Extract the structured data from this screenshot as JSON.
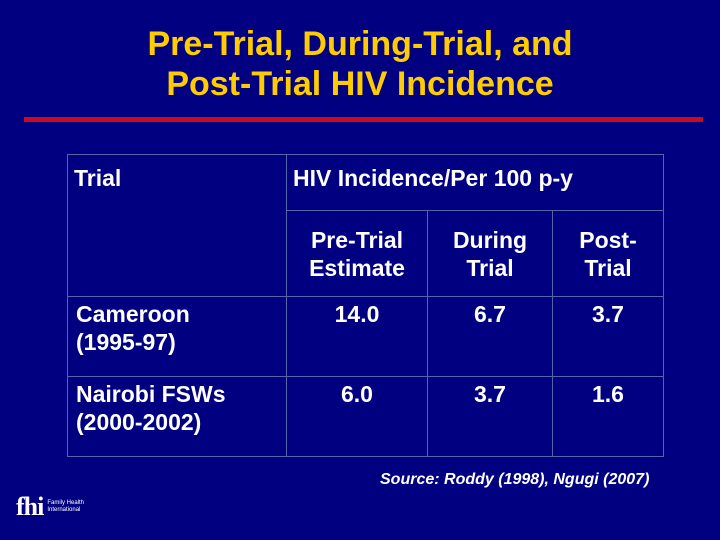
{
  "title": {
    "line1": "Pre-Trial, During-Trial, and",
    "line2": "Post-Trial HIV Incidence"
  },
  "colors": {
    "background": "#000080",
    "title": "#ffcc00",
    "rule": "#cc0a1e",
    "text": "#ffffff",
    "grid": "#5566a8"
  },
  "table": {
    "col_trial_header": "Trial",
    "col_group_header": "HIV Incidence/Per 100 p-y",
    "sub_headers": {
      "pre_line1": "Pre-Trial",
      "pre_line2": "Estimate",
      "during_line1": "During",
      "during_line2": "Trial",
      "post_line1": "Post-",
      "post_line2": "Trial"
    },
    "rows": [
      {
        "trial_line1": "Cameroon",
        "trial_line2": "(1995-97)",
        "pre": "14.0",
        "during": "6.7",
        "post": "3.7"
      },
      {
        "trial_line1": "Nairobi FSWs",
        "trial_line2": "(2000-2002)",
        "pre": "6.0",
        "during": "3.7",
        "post": "1.6"
      }
    ]
  },
  "source": "Source:  Roddy (1998), Ngugi (2007)",
  "logo": {
    "mark": "fhi",
    "line1": "Family Health",
    "line2": "International"
  }
}
